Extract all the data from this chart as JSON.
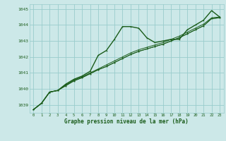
{
  "title": "Graphe pression niveau de la mer (hPa)",
  "background_color": "#cce8e8",
  "grid_color": "#99cccc",
  "line_color": "#1a5c1a",
  "text_color": "#1a5c1a",
  "xlim": [
    -0.5,
    23.5
  ],
  "ylim": [
    1038.5,
    1045.3
  ],
  "yticks": [
    1039,
    1040,
    1041,
    1042,
    1043,
    1044,
    1045
  ],
  "xticks": [
    0,
    1,
    2,
    3,
    4,
    5,
    6,
    7,
    8,
    9,
    10,
    11,
    12,
    13,
    14,
    15,
    16,
    17,
    18,
    19,
    20,
    21,
    22,
    23
  ],
  "series": [
    [
      1038.7,
      1039.1,
      1039.8,
      1039.9,
      1040.3,
      1040.6,
      1040.8,
      1041.1,
      1042.1,
      1042.4,
      1043.1,
      1043.9,
      1043.9,
      1043.8,
      1043.2,
      1042.9,
      1043.0,
      1043.1,
      1043.1,
      1043.7,
      1044.0,
      1044.3,
      1044.9,
      1044.5
    ],
    [
      1038.7,
      1039.1,
      1039.8,
      1039.9,
      1040.25,
      1040.55,
      1040.75,
      1041.0,
      1041.25,
      1041.5,
      1041.75,
      1042.0,
      1042.25,
      1042.45,
      1042.6,
      1042.75,
      1042.9,
      1043.1,
      1043.3,
      1043.55,
      1043.8,
      1044.05,
      1044.45,
      1044.5
    ],
    [
      1038.7,
      1039.1,
      1039.8,
      1039.9,
      1040.2,
      1040.5,
      1040.7,
      1040.95,
      1041.2,
      1041.4,
      1041.65,
      1041.9,
      1042.15,
      1042.35,
      1042.5,
      1042.65,
      1042.8,
      1043.0,
      1043.2,
      1043.45,
      1043.7,
      1043.95,
      1044.4,
      1044.45
    ],
    [
      1038.7,
      1039.1,
      1039.8,
      1039.9,
      1040.2,
      1040.5,
      1040.7,
      1040.95,
      1041.2,
      1041.4,
      1041.65,
      1041.9,
      1042.15,
      1042.35,
      1042.5,
      1042.65,
      1042.8,
      1043.0,
      1043.2,
      1043.45,
      1043.7,
      1043.95,
      1044.4,
      1044.45
    ]
  ]
}
